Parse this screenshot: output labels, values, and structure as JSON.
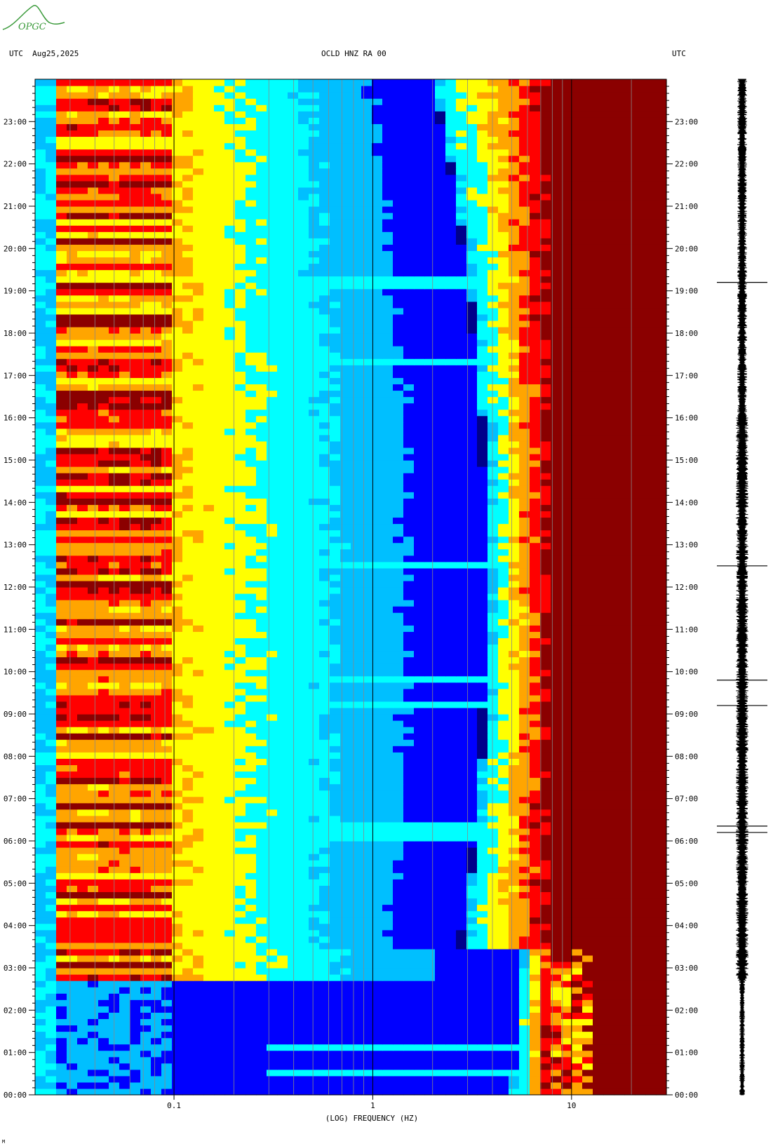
{
  "header": {
    "left": "UTC  Aug25,2025",
    "center": "OCLD HNZ RA 00",
    "right": "UTC"
  },
  "logo": {
    "text": "OPGC",
    "color": "#3a9a3a"
  },
  "x_axis_label": "(LOG) FREQUENCY (HZ)",
  "corner_mark": "M",
  "chart_data": {
    "type": "heatmap",
    "title": "OCLD HNZ RA 00",
    "xlabel": "(LOG) FREQUENCY (HZ)",
    "ylabel": "",
    "x_scale": "log",
    "xlim": [
      0.02,
      30
    ],
    "ylim_hours": [
      0,
      24
    ],
    "x_tick_labels": [
      {
        "value": 0.1,
        "label": "0.1"
      },
      {
        "value": 1,
        "label": "1"
      },
      {
        "value": 10,
        "label": "10"
      }
    ],
    "y_tick_labels": [
      "00:00",
      "01:00",
      "02:00",
      "03:00",
      "04:00",
      "05:00",
      "06:00",
      "07:00",
      "08:00",
      "09:00",
      "10:00",
      "11:00",
      "12:00",
      "13:00",
      "14:00",
      "15:00",
      "16:00",
      "17:00",
      "18:00",
      "19:00",
      "20:00",
      "21:00",
      "22:00",
      "23:00"
    ],
    "colormap": [
      "#00008b",
      "#0000ff",
      "#00bfff",
      "#00ffff",
      "#ffff00",
      "#ffa500",
      "#ff0000",
      "#8b0000"
    ],
    "activity": {
      "microseism_band_hz": [
        0.02,
        0.1
      ],
      "microseism_active_hours": [
        2.7,
        24
      ],
      "high_freq_red_above_hz": 8,
      "transient_events_hours": [
        0.5,
        1.1,
        6.1,
        6.3,
        9.2,
        9.8,
        12.5,
        19.2,
        17.3
      ]
    },
    "seismogram": {
      "color": "#000000",
      "spikes_hours": [
        12.5,
        9.8,
        9.2,
        6.2,
        6.35,
        19.2
      ]
    }
  }
}
